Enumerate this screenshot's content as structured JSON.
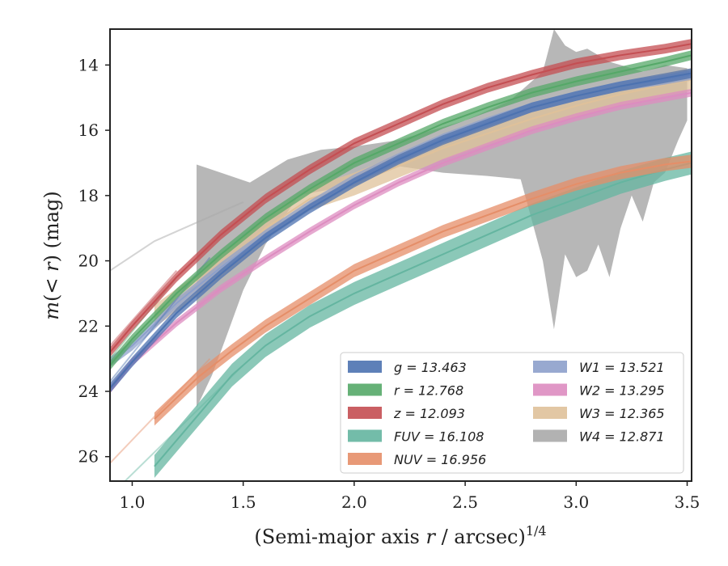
{
  "chart_data": {
    "type": "line",
    "xlabel": "(Semi-major axis r / arcsec)^{1/4}",
    "xlabel_main": "(Semi-major axis ",
    "xlabel_r": "r",
    "xlabel_rest": " / arcsec)",
    "xlabel_exp": "1/4",
    "ylabel": "m(<r) (mag)",
    "ylabel_m": "m",
    "ylabel_inner": "(< ",
    "ylabel_r": "r",
    "ylabel_close": ")",
    "ylabel_unit": " (mag)",
    "xlim": [
      0.9,
      3.52
    ],
    "ylim": [
      26.75,
      12.9
    ],
    "y_inverted": true,
    "xticks": [
      1.0,
      1.5,
      2.0,
      2.5,
      3.0,
      3.5
    ],
    "xtick_labels": [
      "1.0",
      "1.5",
      "2.0",
      "2.5",
      "3.0",
      "3.5"
    ],
    "yticks": [
      14,
      16,
      18,
      20,
      22,
      24,
      26
    ],
    "ytick_labels": [
      "14",
      "16",
      "18",
      "20",
      "22",
      "24",
      "26"
    ],
    "legend_placement": "lower-right",
    "legend_columns": 2,
    "series": [
      {
        "band": "g",
        "legend_label": "g = 13.463",
        "color": "#4c72b0",
        "x": [
          0.9,
          1.0,
          1.2,
          1.4,
          1.6,
          1.8,
          2.0,
          2.2,
          2.4,
          2.6,
          2.8,
          3.0,
          3.2,
          3.4,
          3.52
        ],
        "y": [
          23.9,
          23.1,
          21.6,
          20.4,
          19.3,
          18.4,
          17.6,
          16.9,
          16.3,
          15.8,
          15.3,
          14.95,
          14.65,
          14.4,
          14.25
        ],
        "width": 0.15,
        "faint_tail": [
          1.35,
          0.9,
          19.9,
          23.7
        ]
      },
      {
        "band": "r",
        "legend_label": "r = 12.768",
        "color": "#55a868",
        "x": [
          0.9,
          1.0,
          1.2,
          1.4,
          1.6,
          1.8,
          2.0,
          2.2,
          2.4,
          2.6,
          2.8,
          3.0,
          3.2,
          3.4,
          3.52
        ],
        "y": [
          23.2,
          22.4,
          21.0,
          19.8,
          18.7,
          17.8,
          17.0,
          16.4,
          15.8,
          15.3,
          14.85,
          14.5,
          14.2,
          13.9,
          13.7
        ],
        "width": 0.15,
        "faint_tail": [
          1.2,
          0.9,
          20.5,
          23.0
        ]
      },
      {
        "band": "z",
        "legend_label": "z = 12.093",
        "color": "#c44e52",
        "x": [
          0.9,
          1.0,
          1.2,
          1.4,
          1.6,
          1.8,
          2.0,
          2.2,
          2.4,
          2.6,
          2.8,
          3.0,
          3.2,
          3.4,
          3.52
        ],
        "y": [
          22.8,
          22.0,
          20.5,
          19.2,
          18.1,
          17.2,
          16.4,
          15.8,
          15.2,
          14.7,
          14.3,
          13.95,
          13.7,
          13.5,
          13.35
        ],
        "width": 0.15,
        "faint_tail": [
          1.2,
          0.9,
          20.3,
          22.6
        ]
      },
      {
        "band": "FUV",
        "legend_label": "FUV = 16.108",
        "color": "#64b5a0",
        "x": [
          1.1,
          1.3,
          1.45,
          1.6,
          1.8,
          2.0,
          2.2,
          2.4,
          2.6,
          2.8,
          3.0,
          3.2,
          3.4,
          3.52
        ],
        "y": [
          26.3,
          24.7,
          23.5,
          22.6,
          21.7,
          21.0,
          20.4,
          19.8,
          19.2,
          18.6,
          18.1,
          17.6,
          17.2,
          17.0
        ],
        "width": 0.35,
        "faint_tail": [
          1.5,
          0.9,
          23.2,
          27.2
        ]
      },
      {
        "band": "NUV",
        "legend_label": "NUV = 16.956",
        "color": "#e58e68",
        "x": [
          1.1,
          1.3,
          1.45,
          1.6,
          1.8,
          2.0,
          2.2,
          2.4,
          2.6,
          2.8,
          3.0,
          3.2,
          3.4,
          3.52
        ],
        "y": [
          24.85,
          23.55,
          22.75,
          22.0,
          21.15,
          20.3,
          19.7,
          19.1,
          18.6,
          18.1,
          17.65,
          17.3,
          17.05,
          16.95
        ],
        "width": 0.2,
        "faint_tail": [
          1.35,
          0.9,
          23.0,
          26.2
        ]
      },
      {
        "band": "W1",
        "legend_label": "W1 = 13.521",
        "color": "#8da0cb",
        "x": [
          0.9,
          1.0,
          1.2,
          1.4,
          1.6,
          1.8,
          2.0,
          2.2,
          2.4,
          2.6,
          2.8,
          3.0,
          3.2,
          3.4,
          3.52
        ],
        "y": [
          23.1,
          22.6,
          21.3,
          20.2,
          19.2,
          18.3,
          17.5,
          16.85,
          16.25,
          15.75,
          15.3,
          14.95,
          14.65,
          14.45,
          14.3
        ],
        "width": 0.15,
        "faint_tail": null
      },
      {
        "band": "W2",
        "legend_label": "W2 = 13.295",
        "color": "#dd8cc0",
        "x": [
          0.9,
          1.0,
          1.2,
          1.4,
          1.6,
          1.8,
          2.0,
          2.2,
          2.4,
          2.6,
          2.8,
          3.0,
          3.2,
          3.4,
          3.52
        ],
        "y": [
          23.95,
          23.1,
          21.9,
          20.85,
          19.95,
          19.1,
          18.3,
          17.6,
          17.0,
          16.5,
          16.0,
          15.6,
          15.25,
          15.0,
          14.85
        ],
        "width": 0.12,
        "faint_tail": null
      },
      {
        "band": "W3",
        "legend_label": "W3 = 12.365",
        "color": "#dfc19a",
        "x": [
          1.1,
          1.3,
          1.5,
          1.6,
          1.8,
          2.0,
          2.2,
          2.4,
          2.6,
          2.8,
          3.0,
          3.2,
          3.4,
          3.52
        ],
        "y": [
          21.7,
          20.7,
          19.6,
          19.0,
          18.1,
          17.65,
          17.1,
          16.55,
          16.1,
          15.65,
          15.25,
          14.9,
          14.6,
          14.45
        ],
        "width": 0.35,
        "faint_tail": null
      },
      {
        "band": "W4",
        "legend_label": "W4 = 12.871",
        "color": "#aaaaaa",
        "faint_tail": null
      }
    ],
    "W4_band": {
      "upper_x": [
        1.29,
        1.4,
        1.53,
        1.7,
        1.85,
        2.0,
        2.2,
        2.5,
        2.7,
        2.85,
        2.9,
        2.95,
        3.0,
        3.05,
        3.15,
        3.3,
        3.4,
        3.5
      ],
      "upper_y": [
        17.05,
        17.3,
        17.6,
        16.9,
        16.6,
        16.5,
        16.3,
        15.7,
        15.1,
        14.2,
        12.9,
        13.4,
        13.6,
        13.5,
        13.9,
        14.2,
        14.0,
        14.1
      ],
      "lower_x": [
        3.5,
        3.46,
        3.4,
        3.35,
        3.3,
        3.25,
        3.2,
        3.15,
        3.1,
        3.05,
        3.0,
        2.95,
        2.9,
        2.85,
        2.75,
        2.6,
        2.4,
        2.2,
        2.1,
        2.0,
        1.9,
        1.75,
        1.6,
        1.5,
        1.42,
        1.36,
        1.29
      ],
      "lower_y": [
        15.7,
        16.3,
        17.3,
        17.6,
        18.8,
        18.0,
        19.0,
        20.5,
        19.5,
        20.3,
        20.5,
        19.8,
        22.1,
        20.0,
        17.5,
        17.4,
        17.3,
        17.1,
        17.4,
        17.7,
        17.8,
        18.0,
        19.5,
        20.9,
        22.4,
        23.5,
        24.5
      ],
      "faint_line_x": [
        0.9,
        1.1,
        1.3,
        1.5
      ],
      "faint_line_y": [
        20.3,
        19.4,
        18.8,
        18.2
      ]
    }
  }
}
